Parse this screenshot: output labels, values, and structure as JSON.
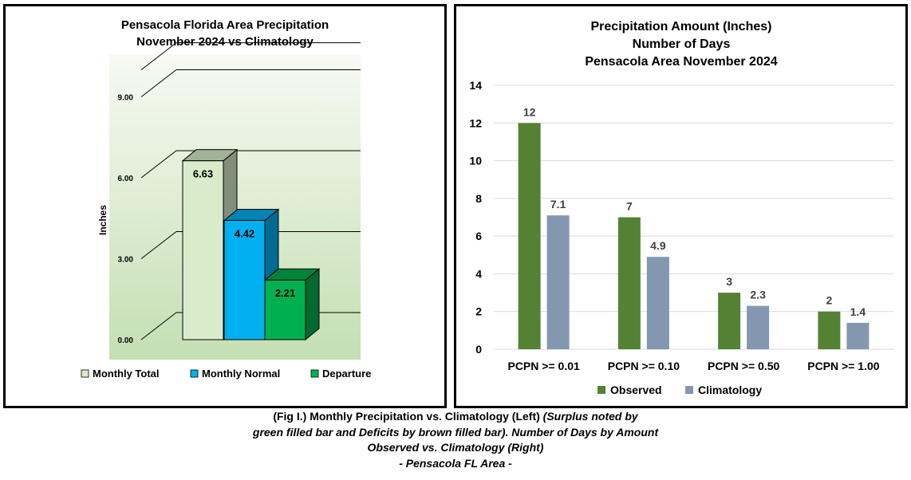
{
  "chart_data": [
    {
      "type": "bar",
      "title": "Pensacola Florida Area Precipitation",
      "subtitle": "November 2024 vs Climatology",
      "ylabel": "Inches",
      "ylim": [
        0,
        10
      ],
      "yticks": [
        "0.00",
        "3.00",
        "6.00",
        "9.00"
      ],
      "grid": true,
      "legend_position": "bottom",
      "categories": [
        "Monthly Total",
        "Monthly Normal",
        "Departure"
      ],
      "values": [
        6.63,
        4.42,
        2.21
      ],
      "data_labels": [
        "6.63",
        "4.42",
        "2.21"
      ],
      "colors": {
        "Monthly Total": "#d8eccb",
        "Monthly Normal": "#00b0f0",
        "Departure": "#00b050"
      }
    },
    {
      "type": "bar",
      "title_lines": [
        "Precipitation Amount (Inches)",
        "Number of Days",
        "Pensacola Area November 2024"
      ],
      "ylim": [
        0,
        14
      ],
      "yticks": [
        "0",
        "2",
        "4",
        "6",
        "8",
        "10",
        "12",
        "14"
      ],
      "grid": true,
      "legend_position": "bottom",
      "categories": [
        "PCPN >= 0.01",
        "PCPN >= 0.10",
        "PCPN >= 0.50",
        "PCPN >= 1.00"
      ],
      "series": [
        {
          "name": "Observed",
          "color": "#548235",
          "values": [
            12,
            7,
            3,
            2
          ],
          "labels": [
            "12",
            "7",
            "3",
            "2"
          ]
        },
        {
          "name": "Climatology",
          "color": "#8497b0",
          "values": [
            7.1,
            4.9,
            2.3,
            1.4
          ],
          "labels": [
            "7.1",
            "4.9",
            "2.3",
            "1.4"
          ]
        }
      ]
    }
  ],
  "caption": {
    "line1_bold": "(Fig I.) Monthly Precipitation vs. Climatology (Left)",
    "line1_italic": "(Surplus noted by",
    "line2": "green filled bar and Deficits by brown filled bar). Number of Days by Amount",
    "line3": "Observed vs. Climatology (Right)",
    "line4": "- Pensacola FL Area -"
  }
}
